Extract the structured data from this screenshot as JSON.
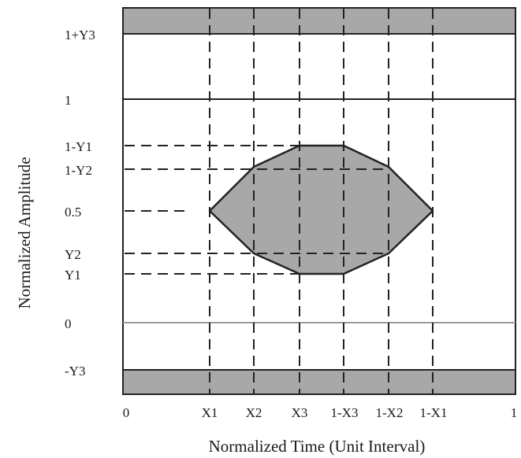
{
  "axes": {
    "x_title": "Normalized Time (Unit Interval)",
    "y_title": "Normalized Amplitude"
  },
  "y_labels": {
    "one_plus_y3": "1+Y3",
    "one": "1",
    "one_minus_y1": "1-Y1",
    "one_minus_y2": "1-Y2",
    "half": "0.5",
    "y2": "Y2",
    "y1": "Y1",
    "zero": "0",
    "minus_y3": "-Y3"
  },
  "x_labels": {
    "zero": "0",
    "x1": "X1",
    "x2": "X2",
    "x3": "X3",
    "one_minus_x3": "1-X3",
    "one_minus_x2": "1-X2",
    "one_minus_x1": "1-X1",
    "one": "1"
  },
  "colors": {
    "mask_fill": "#a8a8a8",
    "line": "#222222",
    "zero_line": "#9a9a9a"
  }
}
